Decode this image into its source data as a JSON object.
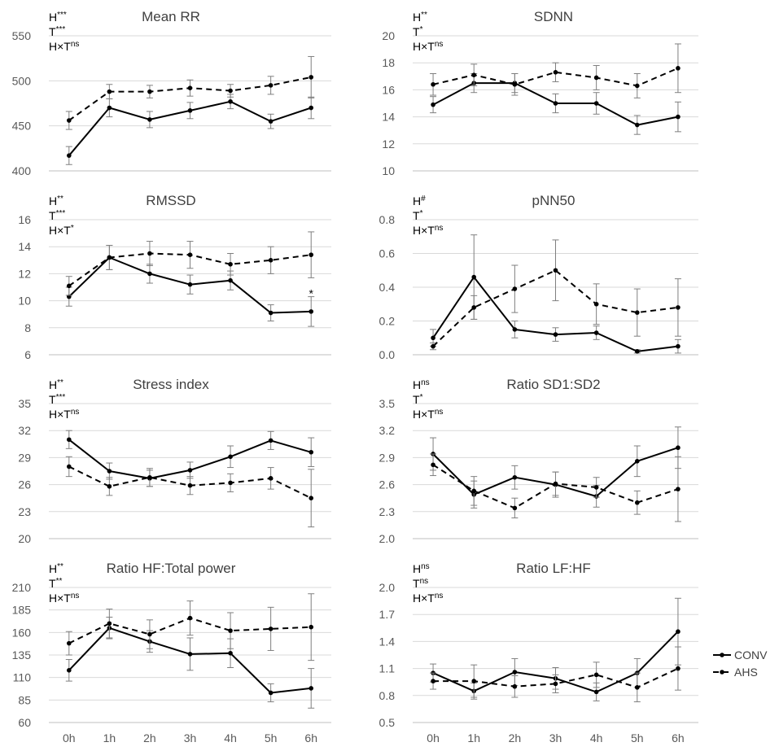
{
  "chart_data": [
    {
      "type": "line",
      "title": "Mean RR",
      "stats": [
        {
          "base": "H",
          "sup": "***"
        },
        {
          "base": "T",
          "sup": "***"
        },
        {
          "base": "H×T",
          "sup": "ns"
        }
      ],
      "categories": [
        "0h",
        "1h",
        "2h",
        "3h",
        "4h",
        "5h",
        "6h"
      ],
      "ylim": [
        400,
        550
      ],
      "yticks": [
        400,
        450,
        500,
        550
      ],
      "series": [
        {
          "name": "CONV",
          "values": [
            417,
            470,
            457,
            467,
            477,
            455,
            470
          ],
          "errors": [
            10,
            10,
            9,
            9,
            8,
            8,
            12
          ]
        },
        {
          "name": "AHS",
          "values": [
            456,
            488,
            488,
            492,
            489,
            495,
            504
          ],
          "errors": [
            10,
            8,
            7,
            9,
            7,
            10,
            23
          ]
        }
      ],
      "annotations": []
    },
    {
      "type": "line",
      "title": "SDNN",
      "stats": [
        {
          "base": "H",
          "sup": "**"
        },
        {
          "base": "T",
          "sup": "*"
        },
        {
          "base": "H×T",
          "sup": "ns"
        }
      ],
      "categories": [
        "0h",
        "1h",
        "2h",
        "3h",
        "4h",
        "5h",
        "6h"
      ],
      "ylim": [
        10,
        20
      ],
      "yticks": [
        10,
        12,
        14,
        16,
        18,
        20
      ],
      "series": [
        {
          "name": "CONV",
          "values": [
            14.9,
            16.5,
            16.5,
            15.0,
            15.0,
            13.4,
            14.0
          ],
          "errors": [
            0.6,
            0.7,
            0.7,
            0.7,
            0.8,
            0.7,
            1.1
          ]
        },
        {
          "name": "AHS",
          "values": [
            16.4,
            17.1,
            16.4,
            17.3,
            16.9,
            16.3,
            17.6
          ],
          "errors": [
            0.8,
            0.8,
            0.8,
            0.7,
            0.9,
            0.9,
            1.8
          ]
        }
      ],
      "annotations": []
    },
    {
      "type": "line",
      "title": "RMSSD",
      "stats": [
        {
          "base": "H",
          "sup": "**"
        },
        {
          "base": "T",
          "sup": "***"
        },
        {
          "base": "H×T",
          "sup": "*"
        }
      ],
      "categories": [
        "0h",
        "1h",
        "2h",
        "3h",
        "4h",
        "5h",
        "6h"
      ],
      "ylim": [
        6,
        16
      ],
      "yticks": [
        6,
        8,
        10,
        12,
        14,
        16
      ],
      "series": [
        {
          "name": "CONV",
          "values": [
            10.3,
            13.2,
            12.0,
            11.2,
            11.5,
            9.1,
            9.2
          ],
          "errors": [
            0.7,
            0.9,
            0.7,
            0.7,
            0.7,
            0.6,
            1.1
          ]
        },
        {
          "name": "AHS",
          "values": [
            11.1,
            13.2,
            13.5,
            13.4,
            12.7,
            13.0,
            13.4
          ],
          "errors": [
            0.7,
            0.9,
            0.9,
            1.0,
            0.8,
            1.0,
            1.7
          ]
        }
      ],
      "annotations": [
        {
          "text": "*",
          "category": "6h",
          "y": 10.6
        }
      ]
    },
    {
      "type": "line",
      "title": "pNN50",
      "stats": [
        {
          "base": "H",
          "sup": "#"
        },
        {
          "base": "T",
          "sup": "*"
        },
        {
          "base": "H×T",
          "sup": "ns"
        }
      ],
      "categories": [
        "0h",
        "1h",
        "2h",
        "3h",
        "4h",
        "5h",
        "6h"
      ],
      "ylim": [
        0.0,
        0.8
      ],
      "yticks": [
        0.0,
        0.2,
        0.4,
        0.6,
        0.8
      ],
      "series": [
        {
          "name": "CONV",
          "values": [
            0.1,
            0.46,
            0.15,
            0.12,
            0.13,
            0.02,
            0.05
          ],
          "errors": [
            0.05,
            0.25,
            0.05,
            0.04,
            0.04,
            0.01,
            0.04
          ]
        },
        {
          "name": "AHS",
          "values": [
            0.05,
            0.28,
            0.39,
            0.5,
            0.3,
            0.25,
            0.28
          ],
          "errors": [
            0.02,
            0.07,
            0.14,
            0.18,
            0.12,
            0.14,
            0.17
          ]
        }
      ],
      "annotations": []
    },
    {
      "type": "line",
      "title": "Stress index",
      "stats": [
        {
          "base": "H",
          "sup": "**"
        },
        {
          "base": "T",
          "sup": "***"
        },
        {
          "base": "H×T",
          "sup": "ns"
        }
      ],
      "categories": [
        "0h",
        "1h",
        "2h",
        "3h",
        "4h",
        "5h",
        "6h"
      ],
      "ylim": [
        20,
        35
      ],
      "yticks": [
        20,
        23,
        26,
        29,
        32,
        35
      ],
      "series": [
        {
          "name": "CONV",
          "values": [
            31.0,
            27.5,
            26.7,
            27.6,
            29.1,
            30.9,
            29.6
          ],
          "errors": [
            1.0,
            0.9,
            0.9,
            0.9,
            1.2,
            1.0,
            1.6
          ]
        },
        {
          "name": "AHS",
          "values": [
            28.0,
            25.8,
            26.8,
            25.9,
            26.2,
            26.7,
            24.5
          ],
          "errors": [
            1.1,
            1.0,
            1.0,
            1.0,
            1.0,
            1.2,
            3.2
          ]
        }
      ],
      "annotations": []
    },
    {
      "type": "line",
      "title": "Ratio SD1:SD2",
      "stats": [
        {
          "base": "H",
          "sup": "ns"
        },
        {
          "base": "T",
          "sup": "*"
        },
        {
          "base": "H×T",
          "sup": "ns"
        }
      ],
      "categories": [
        "0h",
        "1h",
        "2h",
        "3h",
        "4h",
        "5h",
        "6h"
      ],
      "ylim": [
        2.0,
        3.5
      ],
      "yticks": [
        2.0,
        2.3,
        2.6,
        2.9,
        3.2,
        3.5
      ],
      "series": [
        {
          "name": "CONV",
          "values": [
            2.94,
            2.49,
            2.68,
            2.6,
            2.47,
            2.86,
            3.01
          ],
          "errors": [
            0.18,
            0.15,
            0.13,
            0.14,
            0.12,
            0.17,
            0.23
          ]
        },
        {
          "name": "AHS",
          "values": [
            2.82,
            2.53,
            2.34,
            2.61,
            2.57,
            2.4,
            2.55
          ],
          "errors": [
            0.12,
            0.16,
            0.11,
            0.13,
            0.11,
            0.13,
            0.36
          ]
        }
      ],
      "annotations": []
    },
    {
      "type": "line",
      "title": "Ratio HF:Total power",
      "stats": [
        {
          "base": "H",
          "sup": "**"
        },
        {
          "base": "T",
          "sup": "**"
        },
        {
          "base": "H×T",
          "sup": "ns"
        }
      ],
      "categories": [
        "0h",
        "1h",
        "2h",
        "3h",
        "4h",
        "5h",
        "6h"
      ],
      "ylim": [
        60,
        210
      ],
      "yticks": [
        60,
        85,
        110,
        135,
        160,
        185,
        210
      ],
      "series": [
        {
          "name": "CONV",
          "values": [
            118,
            165,
            150,
            136,
            137,
            93,
            98
          ],
          "errors": [
            12,
            12,
            12,
            18,
            16,
            10,
            22
          ]
        },
        {
          "name": "AHS",
          "values": [
            148,
            170,
            158,
            176,
            162,
            164,
            166
          ],
          "errors": [
            13,
            16,
            16,
            19,
            20,
            24,
            37
          ]
        }
      ],
      "annotations": []
    },
    {
      "type": "line",
      "title": "Ratio LF:HF",
      "stats": [
        {
          "base": "H",
          "sup": "ns"
        },
        {
          "base": "T",
          "sup": "ns"
        },
        {
          "base": "H×T",
          "sup": "ns"
        }
      ],
      "categories": [
        "0h",
        "1h",
        "2h",
        "3h",
        "4h",
        "5h",
        "6h"
      ],
      "ylim": [
        0.5,
        2.0
      ],
      "yticks": [
        0.5,
        0.8,
        1.1,
        1.4,
        1.7,
        2.0
      ],
      "series": [
        {
          "name": "CONV",
          "values": [
            1.05,
            0.85,
            1.06,
            0.99,
            0.84,
            1.05,
            1.51
          ],
          "errors": [
            0.1,
            0.09,
            0.15,
            0.12,
            0.1,
            0.16,
            0.37
          ]
        },
        {
          "name": "AHS",
          "values": [
            0.96,
            0.96,
            0.9,
            0.93,
            1.03,
            0.89,
            1.1
          ],
          "errors": [
            0.09,
            0.18,
            0.12,
            0.1,
            0.14,
            0.16,
            0.24
          ]
        }
      ],
      "annotations": []
    }
  ],
  "legend": {
    "position": "right",
    "items": [
      {
        "name": "CONV",
        "style": "solid"
      },
      {
        "name": "AHS",
        "style": "dashed"
      }
    ]
  },
  "colors": {
    "line": "#000000",
    "error_bar": "#7f7f7f",
    "grid": "#d9d9d9",
    "axis": "#bfbfbf",
    "tick_text": "#595959",
    "title_text": "#404040"
  }
}
